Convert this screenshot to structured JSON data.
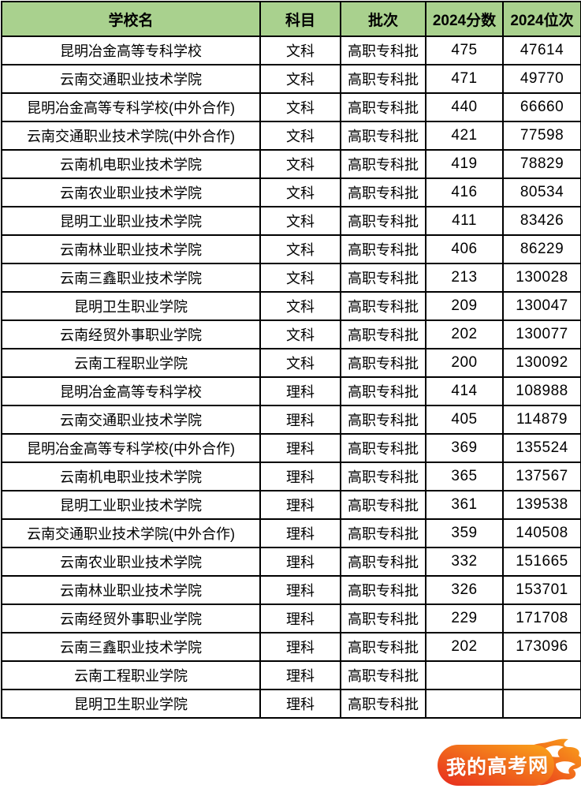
{
  "table": {
    "columns": [
      {
        "key": "school",
        "label": "学校名"
      },
      {
        "key": "subject",
        "label": "科目"
      },
      {
        "key": "batch",
        "label": "批次"
      },
      {
        "key": "score",
        "label": "2024分数"
      },
      {
        "key": "rank",
        "label": "2024位次"
      }
    ],
    "rows": [
      {
        "school": "昆明冶金高等专科学校",
        "subject": "文科",
        "batch": "高职专科批",
        "score": "475",
        "rank": "47614"
      },
      {
        "school": "云南交通职业技术学院",
        "subject": "文科",
        "batch": "高职专科批",
        "score": "471",
        "rank": "49770"
      },
      {
        "school": "昆明冶金高等专科学校(中外合作)",
        "subject": "文科",
        "batch": "高职专科批",
        "score": "440",
        "rank": "66660"
      },
      {
        "school": "云南交通职业技术学院(中外合作)",
        "subject": "文科",
        "batch": "高职专科批",
        "score": "421",
        "rank": "77598"
      },
      {
        "school": "云南机电职业技术学院",
        "subject": "文科",
        "batch": "高职专科批",
        "score": "419",
        "rank": "78829"
      },
      {
        "school": "云南农业职业技术学院",
        "subject": "文科",
        "batch": "高职专科批",
        "score": "416",
        "rank": "80534"
      },
      {
        "school": "昆明工业职业技术学院",
        "subject": "文科",
        "batch": "高职专科批",
        "score": "411",
        "rank": "83426"
      },
      {
        "school": "云南林业职业技术学院",
        "subject": "文科",
        "batch": "高职专科批",
        "score": "406",
        "rank": "86229"
      },
      {
        "school": "云南三鑫职业技术学院",
        "subject": "文科",
        "batch": "高职专科批",
        "score": "213",
        "rank": "130028"
      },
      {
        "school": "昆明卫生职业学院",
        "subject": "文科",
        "batch": "高职专科批",
        "score": "209",
        "rank": "130047"
      },
      {
        "school": "云南经贸外事职业学院",
        "subject": "文科",
        "batch": "高职专科批",
        "score": "202",
        "rank": "130077"
      },
      {
        "school": "云南工程职业学院",
        "subject": "文科",
        "batch": "高职专科批",
        "score": "200",
        "rank": "130092"
      },
      {
        "school": "昆明冶金高等专科学校",
        "subject": "理科",
        "batch": "高职专科批",
        "score": "414",
        "rank": "108988"
      },
      {
        "school": "云南交通职业技术学院",
        "subject": "理科",
        "batch": "高职专科批",
        "score": "405",
        "rank": "114879"
      },
      {
        "school": "昆明冶金高等专科学校(中外合作)",
        "subject": "理科",
        "batch": "高职专科批",
        "score": "369",
        "rank": "135524"
      },
      {
        "school": "云南机电职业技术学院",
        "subject": "理科",
        "batch": "高职专科批",
        "score": "365",
        "rank": "137567"
      },
      {
        "school": "昆明工业职业技术学院",
        "subject": "理科",
        "batch": "高职专科批",
        "score": "361",
        "rank": "139538"
      },
      {
        "school": "云南交通职业技术学院(中外合作)",
        "subject": "理科",
        "batch": "高职专科批",
        "score": "359",
        "rank": "140508"
      },
      {
        "school": "云南农业职业技术学院",
        "subject": "理科",
        "batch": "高职专科批",
        "score": "332",
        "rank": "151665"
      },
      {
        "school": "云南林业职业技术学院",
        "subject": "理科",
        "batch": "高职专科批",
        "score": "326",
        "rank": "153701"
      },
      {
        "school": "云南经贸外事职业学院",
        "subject": "理科",
        "batch": "高职专科批",
        "score": "229",
        "rank": "171708"
      },
      {
        "school": "云南三鑫职业技术学院",
        "subject": "理科",
        "batch": "高职专科批",
        "score": "202",
        "rank": "173096"
      },
      {
        "school": "云南工程职业学院",
        "subject": "理科",
        "batch": "高职专科批",
        "score": "",
        "rank": ""
      },
      {
        "school": "昆明卫生职业学院",
        "subject": "理科",
        "batch": "高职专科批",
        "score": "",
        "rank": ""
      }
    ]
  },
  "watermark": {
    "text": "我的高考网",
    "gradient_start": "#e72b1e",
    "gradient_end": "#faa61a",
    "text_color": "#ffffff"
  },
  "colors": {
    "header_bg": "#a9d18e",
    "border": "#000000",
    "text": "#000000"
  }
}
